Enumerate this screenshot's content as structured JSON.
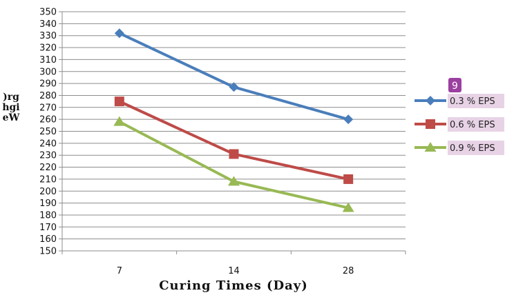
{
  "chart_data": {
    "type": "line",
    "title": "",
    "xlabel": "Curing Times (Day)",
    "ylabel": ")rg\nhgi\neW",
    "categories": [
      "7",
      "14",
      "28"
    ],
    "ylim": [
      150,
      350
    ],
    "yticks": [
      150,
      160,
      170,
      180,
      190,
      200,
      210,
      220,
      230,
      240,
      250,
      260,
      270,
      280,
      290,
      300,
      310,
      320,
      330,
      340,
      350
    ],
    "grid": true,
    "legend_position": "right",
    "badge": "9",
    "series": [
      {
        "name": "0.3 % EPS",
        "values": [
          332,
          287,
          260
        ],
        "color": "#4a7ebb",
        "marker": "diamond"
      },
      {
        "name": "0.6 % EPS",
        "values": [
          275,
          231,
          210
        ],
        "color": "#be4b48",
        "marker": "square"
      },
      {
        "name": "0.9 % EPS",
        "values": [
          258,
          208,
          186
        ],
        "color": "#98b954",
        "marker": "triangle"
      }
    ]
  }
}
